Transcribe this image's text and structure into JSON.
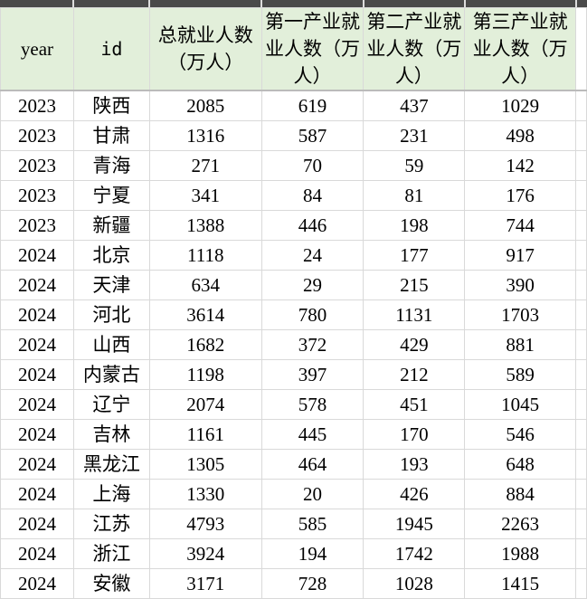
{
  "table": {
    "headers": [
      "year",
      "id",
      "总就业人数（万人）",
      "第一产业就业人数（万人）",
      "第二产业就业人数（万人）",
      "第三产业就业人数（万人）"
    ],
    "rows": [
      [
        "2023",
        "陕西",
        "2085",
        "619",
        "437",
        "1029"
      ],
      [
        "2023",
        "甘肃",
        "1316",
        "587",
        "231",
        "498"
      ],
      [
        "2023",
        "青海",
        "271",
        "70",
        "59",
        "142"
      ],
      [
        "2023",
        "宁夏",
        "341",
        "84",
        "81",
        "176"
      ],
      [
        "2023",
        "新疆",
        "1388",
        "446",
        "198",
        "744"
      ],
      [
        "2024",
        "北京",
        "1118",
        "24",
        "177",
        "917"
      ],
      [
        "2024",
        "天津",
        "634",
        "29",
        "215",
        "390"
      ],
      [
        "2024",
        "河北",
        "3614",
        "780",
        "1131",
        "1703"
      ],
      [
        "2024",
        "山西",
        "1682",
        "372",
        "429",
        "881"
      ],
      [
        "2024",
        "内蒙古",
        "1198",
        "397",
        "212",
        "589"
      ],
      [
        "2024",
        "辽宁",
        "2074",
        "578",
        "451",
        "1045"
      ],
      [
        "2024",
        "吉林",
        "1161",
        "445",
        "170",
        "546"
      ],
      [
        "2024",
        "黑龙江",
        "1305",
        "464",
        "193",
        "648"
      ],
      [
        "2024",
        "上海",
        "1330",
        "20",
        "426",
        "884"
      ],
      [
        "2024",
        "江苏",
        "4793",
        "585",
        "1945",
        "2263"
      ],
      [
        "2024",
        "浙江",
        "3924",
        "194",
        "1742",
        "1988"
      ],
      [
        "2024",
        "安徽",
        "3171",
        "728",
        "1028",
        "1415"
      ]
    ]
  },
  "colors": {
    "header_bg": "#e2efda",
    "grid": "#d9d9d9"
  }
}
